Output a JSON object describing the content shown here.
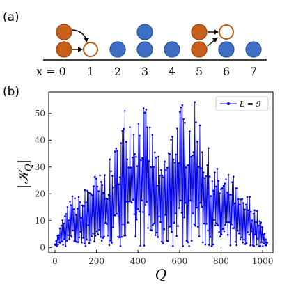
{
  "panel_a": {
    "label": "(a)",
    "x_prefix": "x = 0",
    "sites": [
      "1",
      "2",
      "3",
      "4",
      "5",
      "6",
      "7"
    ],
    "colors": {
      "filled": "#c8601c",
      "empty_ring": "#b85a1a",
      "blue": "#3f6fc4",
      "blue_edge": "#27508f"
    }
  },
  "chart_data": {
    "type": "line",
    "panel_label": "(b)",
    "xlabel": "Q",
    "ylabel": "|K_Q|",
    "xlim": [
      -30,
      1050
    ],
    "ylim": [
      -2,
      58
    ],
    "xticks": [
      "0",
      "200",
      "400",
      "600",
      "800",
      "1000"
    ],
    "yticks": [
      "0",
      "10",
      "20",
      "30",
      "40",
      "50"
    ],
    "grid": false,
    "legend": {
      "position": "top-right",
      "entries": [
        "L = 9"
      ]
    },
    "color": "#0000ee",
    "series": [
      {
        "name": "L = 9",
        "x_range": [
          0,
          1022
        ],
        "envelope_peaks": [
          {
            "x": 0,
            "y": 2
          },
          {
            "x": 40,
            "y": 12
          },
          {
            "x": 85,
            "y": 20
          },
          {
            "x": 130,
            "y": 19
          },
          {
            "x": 170,
            "y": 28
          },
          {
            "x": 210,
            "y": 27
          },
          {
            "x": 255,
            "y": 31
          },
          {
            "x": 300,
            "y": 40
          },
          {
            "x": 340,
            "y": 55
          },
          {
            "x": 385,
            "y": 52
          },
          {
            "x": 425,
            "y": 55
          },
          {
            "x": 470,
            "y": 44
          },
          {
            "x": 511,
            "y": 30
          },
          {
            "x": 555,
            "y": 44
          },
          {
            "x": 600,
            "y": 55
          },
          {
            "x": 640,
            "y": 52
          },
          {
            "x": 683,
            "y": 55
          },
          {
            "x": 725,
            "y": 40
          },
          {
            "x": 770,
            "y": 31
          },
          {
            "x": 810,
            "y": 27
          },
          {
            "x": 855,
            "y": 28
          },
          {
            "x": 895,
            "y": 19
          },
          {
            "x": 940,
            "y": 20
          },
          {
            "x": 985,
            "y": 12
          },
          {
            "x": 1022,
            "y": 2
          }
        ]
      }
    ]
  }
}
